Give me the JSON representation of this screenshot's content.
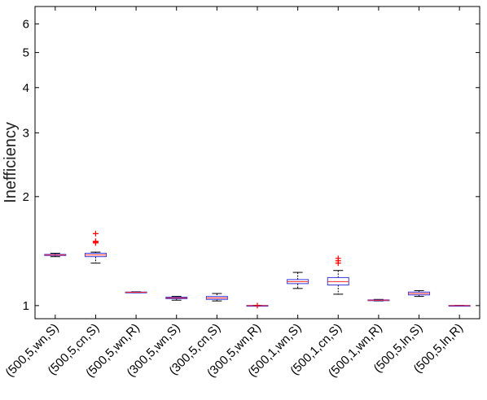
{
  "chart_data": {
    "type": "box",
    "title": "",
    "xlabel": "",
    "ylabel": "Inefficiency",
    "yscale": "log",
    "ylim": [
      0.92,
      6.7
    ],
    "yticks": [
      1,
      2,
      3,
      4,
      5,
      6
    ],
    "categories": [
      "(500,5,wn,S)",
      "(500,5,cn,S)",
      "(500,5,wn,R)",
      "(300,5,wn,S)",
      "(300,5,cn,S)",
      "(300,5,wn,R)",
      "(500,1,wn,S)",
      "(500,1,cn,S)",
      "(500,1,wn,R)",
      "(500,5,ln,S)",
      "(500,5,ln,R)"
    ],
    "boxes": [
      {
        "whisker_low": 1.365,
        "q1": 1.375,
        "median": 1.38,
        "q3": 1.385,
        "whisker_high": 1.395,
        "outliers": []
      },
      {
        "whisker_low": 1.31,
        "q1": 1.365,
        "median": 1.38,
        "q3": 1.395,
        "whisker_high": 1.405,
        "outliers": [
          1.49,
          1.5,
          1.505,
          1.58
        ]
      },
      {
        "whisker_low": 1.085,
        "q1": 1.087,
        "median": 1.088,
        "q3": 1.09,
        "whisker_high": 1.092,
        "outliers": []
      },
      {
        "whisker_low": 1.035,
        "q1": 1.045,
        "median": 1.05,
        "q3": 1.055,
        "whisker_high": 1.06,
        "outliers": []
      },
      {
        "whisker_low": 1.03,
        "q1": 1.04,
        "median": 1.05,
        "q3": 1.06,
        "whisker_high": 1.08,
        "outliers": []
      },
      {
        "whisker_low": 1.0,
        "q1": 1.0,
        "median": 1.0,
        "q3": 1.001,
        "whisker_high": 1.002,
        "outliers": [
          1.0
        ]
      },
      {
        "whisker_low": 1.115,
        "q1": 1.15,
        "median": 1.165,
        "q3": 1.18,
        "whisker_high": 1.235,
        "outliers": []
      },
      {
        "whisker_low": 1.075,
        "q1": 1.14,
        "median": 1.165,
        "q3": 1.195,
        "whisker_high": 1.25,
        "outliers": [
          1.31,
          1.33,
          1.35
        ]
      },
      {
        "whisker_low": 1.03,
        "q1": 1.033,
        "median": 1.035,
        "q3": 1.037,
        "whisker_high": 1.04,
        "outliers": []
      },
      {
        "whisker_low": 1.06,
        "q1": 1.07,
        "median": 1.08,
        "q3": 1.09,
        "whisker_high": 1.1,
        "outliers": []
      },
      {
        "whisker_low": 1.0,
        "q1": 1.0,
        "median": 1.0,
        "q3": 1.001,
        "whisker_high": 1.002,
        "outliers": []
      }
    ],
    "colors": {
      "box": "#3a3adf",
      "median": "#ff2a2a",
      "whisker": "#000000",
      "outlier": "#ff0000",
      "axis": "#000000"
    },
    "grid": false,
    "legend": "none"
  }
}
